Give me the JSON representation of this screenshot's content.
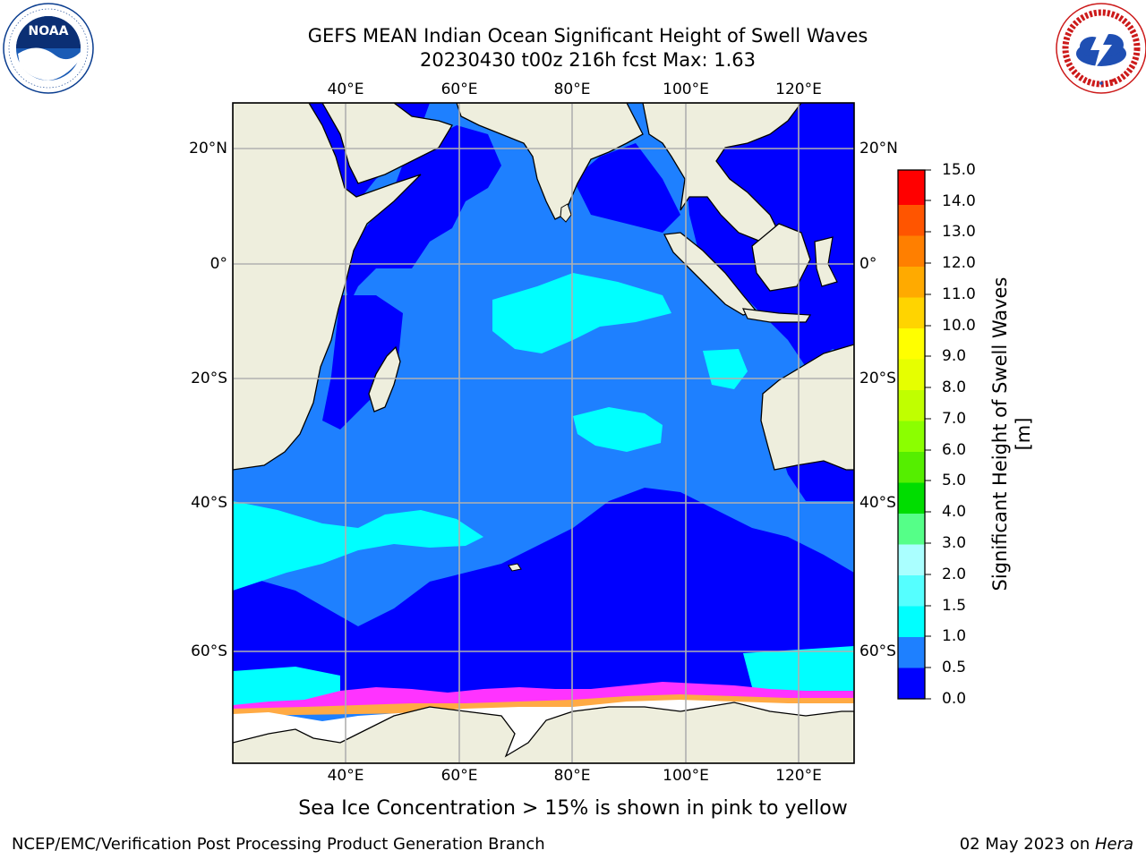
{
  "header": {
    "title_line1": "GEFS MEAN Indian Ocean Significant Height of Swell Waves",
    "title_line2": "20230430 t00z 216h fcst   Max: 1.63"
  },
  "logos": {
    "left": "NOAA",
    "left_ring_text": "NATIONAL OCEANIC AND ATMOSPHERIC ADMINISTRATION · U.S. DEPARTMENT OF COMMERCE",
    "right_ring_text": "NATIONAL WEATHER SERVICE"
  },
  "map": {
    "lon_ticks": [
      "40°E",
      "60°E",
      "80°E",
      "100°E",
      "120°E"
    ],
    "lat_ticks": [
      "20°N",
      "0°",
      "20°S",
      "40°S",
      "60°S"
    ],
    "lon_range_deg": [
      20,
      130
    ],
    "lat_range_deg": [
      -75,
      27
    ],
    "colors": {
      "land": "#eeeedd",
      "ocean_calm": "#0000ff",
      "ocean_low": "#1e80ff",
      "ocean_mid": "#00ffff",
      "sea_ice_pink": "#ff33ff",
      "sea_ice_orange": "#ffaa44",
      "grid": "#b0b0b0"
    }
  },
  "colorbar": {
    "title": "Significant Height of Swell Waves [m]",
    "labels": [
      "15.0",
      "14.0",
      "13.0",
      "12.0",
      "11.0",
      "10.0",
      "9.0",
      "8.0",
      "7.0",
      "6.0",
      "5.0",
      "4.0",
      "3.0",
      "2.0",
      "1.5",
      "1.0",
      "0.5",
      "0.0"
    ],
    "bin_colors": [
      "#ff0000",
      "#ff2800",
      "#ff5500",
      "#ff7f00",
      "#ffaa00",
      "#ffd400",
      "#ffff00",
      "#e6ff00",
      "#c0ff00",
      "#8bff00",
      "#55ee00",
      "#00dd00",
      "#55ff88",
      "#aaffff",
      "#55ffff",
      "#00ffff",
      "#1e80ff",
      "#0000ff"
    ]
  },
  "caption": "Sea Ice Concentration > 15% is shown in pink to yellow",
  "footer": {
    "left": "NCEP/EMC/Verification Post Processing Product Generation Branch",
    "date": "02 May 2023 on ",
    "machine": "Hera"
  }
}
